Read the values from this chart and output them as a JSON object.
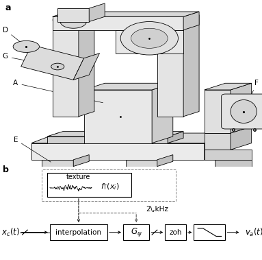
{
  "fig_width": 3.83,
  "fig_height": 3.79,
  "dpi": 100,
  "bg_color": "#ffffff",
  "label_a": "a",
  "label_b": "b",
  "gray_face": "#ebebeb",
  "gray_side": "#c8c8c8",
  "gray_top": "#d8d8d8",
  "gray_dark": "#aaaaaa",
  "lw_main": 0.6,
  "fs_label": 7.5,
  "fs_block": 7.0,
  "block_lw": 0.8,
  "texture_label": "texture",
  "fT_label": "$f_\\mathrm{T}(x_i)$",
  "xc_label": "$x_c(t)$",
  "va_label": "$v_a(t)$",
  "freq_label": "2\\,kHz",
  "interp_label": "interpolation",
  "zoh_label": "zoh"
}
